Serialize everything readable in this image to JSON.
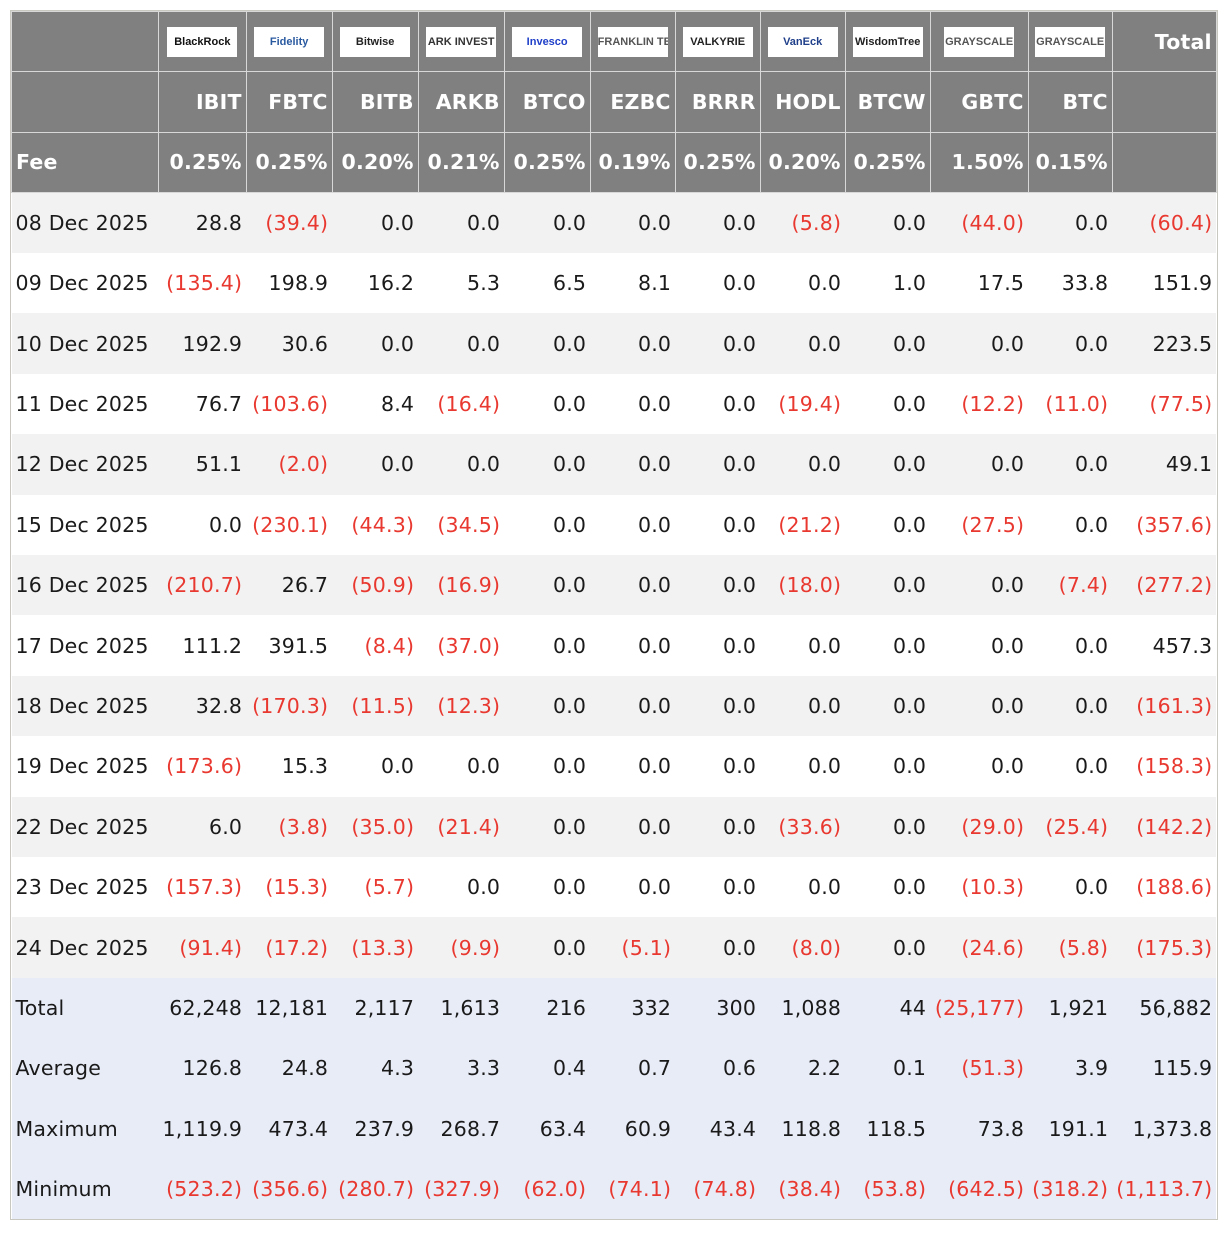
{
  "logos": [
    "BlackRock",
    "Fidelity",
    "Bitwise",
    "ARK INVEST",
    "Invesco",
    "FRANKLIN TEMPLETON",
    "VALKYRIE",
    "VanEck",
    "WisdomTree",
    "GRAYSCALE",
    "GRAYSCALE"
  ],
  "logo_colors": [
    "#111",
    "#2a5aa0",
    "#222",
    "#333",
    "#1f3fc8",
    "#555",
    "#222",
    "#1f3f8a",
    "#222",
    "#555",
    "#555"
  ],
  "total_header": "Total",
  "tickers": [
    "IBIT",
    "FBTC",
    "BITB",
    "ARKB",
    "BTCO",
    "EZBC",
    "BRRR",
    "HODL",
    "BTCW",
    "GBTC",
    "BTC"
  ],
  "fee_label": "Fee",
  "fees": [
    "0.25%",
    "0.25%",
    "0.20%",
    "0.21%",
    "0.25%",
    "0.19%",
    "0.25%",
    "0.20%",
    "0.25%",
    "1.50%",
    "0.15%"
  ],
  "negative_color": "#e8382f",
  "rows": [
    {
      "label": "08 Dec 2025",
      "values": [
        "28.8",
        "(39.4)",
        "0.0",
        "0.0",
        "0.0",
        "0.0",
        "0.0",
        "(5.8)",
        "0.0",
        "(44.0)",
        "0.0",
        "(60.4)"
      ]
    },
    {
      "label": "09 Dec 2025",
      "values": [
        "(135.4)",
        "198.9",
        "16.2",
        "5.3",
        "6.5",
        "8.1",
        "0.0",
        "0.0",
        "1.0",
        "17.5",
        "33.8",
        "151.9"
      ]
    },
    {
      "label": "10 Dec 2025",
      "values": [
        "192.9",
        "30.6",
        "0.0",
        "0.0",
        "0.0",
        "0.0",
        "0.0",
        "0.0",
        "0.0",
        "0.0",
        "0.0",
        "223.5"
      ]
    },
    {
      "label": "11 Dec 2025",
      "values": [
        "76.7",
        "(103.6)",
        "8.4",
        "(16.4)",
        "0.0",
        "0.0",
        "0.0",
        "(19.4)",
        "0.0",
        "(12.2)",
        "(11.0)",
        "(77.5)"
      ]
    },
    {
      "label": "12 Dec 2025",
      "values": [
        "51.1",
        "(2.0)",
        "0.0",
        "0.0",
        "0.0",
        "0.0",
        "0.0",
        "0.0",
        "0.0",
        "0.0",
        "0.0",
        "49.1"
      ]
    },
    {
      "label": "15 Dec 2025",
      "values": [
        "0.0",
        "(230.1)",
        "(44.3)",
        "(34.5)",
        "0.0",
        "0.0",
        "0.0",
        "(21.2)",
        "0.0",
        "(27.5)",
        "0.0",
        "(357.6)"
      ]
    },
    {
      "label": "16 Dec 2025",
      "values": [
        "(210.7)",
        "26.7",
        "(50.9)",
        "(16.9)",
        "0.0",
        "0.0",
        "0.0",
        "(18.0)",
        "0.0",
        "0.0",
        "(7.4)",
        "(277.2)"
      ]
    },
    {
      "label": "17 Dec 2025",
      "values": [
        "111.2",
        "391.5",
        "(8.4)",
        "(37.0)",
        "0.0",
        "0.0",
        "0.0",
        "0.0",
        "0.0",
        "0.0",
        "0.0",
        "457.3"
      ]
    },
    {
      "label": "18 Dec 2025",
      "values": [
        "32.8",
        "(170.3)",
        "(11.5)",
        "(12.3)",
        "0.0",
        "0.0",
        "0.0",
        "0.0",
        "0.0",
        "0.0",
        "0.0",
        "(161.3)"
      ]
    },
    {
      "label": "19 Dec 2025",
      "values": [
        "(173.6)",
        "15.3",
        "0.0",
        "0.0",
        "0.0",
        "0.0",
        "0.0",
        "0.0",
        "0.0",
        "0.0",
        "0.0",
        "(158.3)"
      ]
    },
    {
      "label": "22 Dec 2025",
      "values": [
        "6.0",
        "(3.8)",
        "(35.0)",
        "(21.4)",
        "0.0",
        "0.0",
        "0.0",
        "(33.6)",
        "0.0",
        "(29.0)",
        "(25.4)",
        "(142.2)"
      ]
    },
    {
      "label": "23 Dec 2025",
      "values": [
        "(157.3)",
        "(15.3)",
        "(5.7)",
        "0.0",
        "0.0",
        "0.0",
        "0.0",
        "0.0",
        "0.0",
        "(10.3)",
        "0.0",
        "(188.6)"
      ]
    },
    {
      "label": "24 Dec 2025",
      "values": [
        "(91.4)",
        "(17.2)",
        "(13.3)",
        "(9.9)",
        "0.0",
        "(5.1)",
        "0.0",
        "(8.0)",
        "0.0",
        "(24.6)",
        "(5.8)",
        "(175.3)"
      ]
    }
  ],
  "summary": [
    {
      "label": "Total",
      "values": [
        "62,248",
        "12,181",
        "2,117",
        "1,613",
        "216",
        "332",
        "300",
        "1,088",
        "44",
        "(25,177)",
        "1,921",
        "56,882"
      ]
    },
    {
      "label": "Average",
      "values": [
        "126.8",
        "24.8",
        "4.3",
        "3.3",
        "0.4",
        "0.7",
        "0.6",
        "2.2",
        "0.1",
        "(51.3)",
        "3.9",
        "115.9"
      ]
    },
    {
      "label": "Maximum",
      "values": [
        "1,119.9",
        "473.4",
        "237.9",
        "268.7",
        "63.4",
        "60.9",
        "43.4",
        "118.8",
        "118.5",
        "73.8",
        "191.1",
        "1,373.8"
      ]
    },
    {
      "label": "Minimum",
      "values": [
        "(523.2)",
        "(356.6)",
        "(280.7)",
        "(327.9)",
        "(62.0)",
        "(74.1)",
        "(74.8)",
        "(38.4)",
        "(53.8)",
        "(642.5)",
        "(318.2)",
        "(1,113.7)"
      ]
    }
  ]
}
